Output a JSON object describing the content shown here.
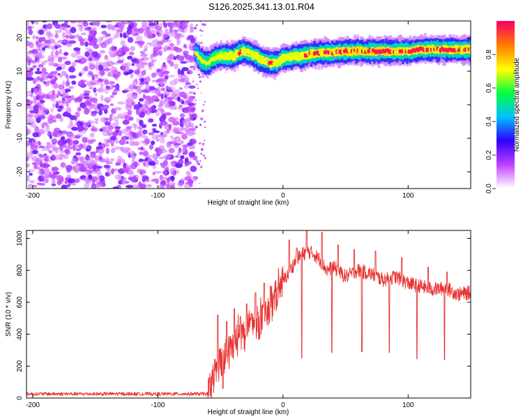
{
  "title": "S126.2025.341.13.01.R04",
  "chart_data": [
    {
      "type": "heatmap",
      "title": "S126.2025.341.13.01.R04",
      "xlabel": "Height of straight line (km)",
      "ylabel": "Frequency (Hz)",
      "xlim": [
        -205,
        150
      ],
      "ylim": [
        -25,
        25
      ],
      "xticks": [
        -200,
        -100,
        0,
        100
      ],
      "yticks": [
        -20,
        -10,
        0,
        10,
        20
      ],
      "colorbar": {
        "label": "Normalized spectral amplitude",
        "range": [
          0,
          1
        ],
        "ticks": [
          0.0,
          0.2,
          0.4,
          0.6,
          0.8
        ],
        "colors": [
          "#ffffff",
          "#c040ff",
          "#3000ff",
          "#00c0ff",
          "#00ff40",
          "#ffff00",
          "#ff8000",
          "#ff0060"
        ]
      },
      "noise_region": {
        "x": [
          -205,
          -70
        ],
        "level": 0.2
      },
      "signal_track": {
        "x": [
          -70,
          -65,
          -60,
          -55,
          -50,
          -45,
          -40,
          -35,
          -30,
          -25,
          -20,
          -15,
          -10,
          -5,
          0,
          5,
          10,
          15,
          20,
          30,
          40,
          50,
          60,
          70,
          80,
          90,
          100,
          110,
          120,
          130,
          140,
          150
        ],
        "freq": [
          15.5,
          13.0,
          12.5,
          14.0,
          14.5,
          14.5,
          14.5,
          15.5,
          16.0,
          15.0,
          14.0,
          13.0,
          12.5,
          12.5,
          14.0,
          14.0,
          14.5,
          14.5,
          15.0,
          15.5,
          15.5,
          16.0,
          16.0,
          16.0,
          16.0,
          16.0,
          16.0,
          16.5,
          16.5,
          16.5,
          16.5,
          16.5
        ],
        "amplitude": [
          0.4,
          0.5,
          0.5,
          0.6,
          0.65,
          0.75,
          0.8,
          0.85,
          0.8,
          0.75,
          0.8,
          0.8,
          0.85,
          0.8,
          0.75,
          0.75,
          0.8,
          0.8,
          0.85,
          0.9,
          0.9,
          0.95,
          0.95,
          0.95,
          0.95,
          0.95,
          0.9,
          0.9,
          0.9,
          0.9,
          0.9,
          0.9
        ]
      }
    },
    {
      "type": "line",
      "xlabel": "Height of straight line (km)",
      "ylabel": "SNR (10 * v/v)",
      "xlim": [
        -205,
        150
      ],
      "ylim": [
        0,
        1050
      ],
      "xticks": [
        -200,
        -100,
        0,
        100
      ],
      "yticks": [
        0,
        200,
        400,
        600,
        800,
        1000
      ],
      "color": "#e83030",
      "envelope": {
        "x": [
          -205,
          -60,
          -55,
          -50,
          -45,
          -40,
          -35,
          -30,
          -25,
          -20,
          -15,
          -10,
          -5,
          0,
          5,
          10,
          15,
          20,
          25,
          30,
          35,
          40,
          50,
          60,
          70,
          80,
          90,
          100,
          110,
          120,
          130,
          140,
          150
        ],
        "y": [
          25,
          25,
          150,
          230,
          270,
          320,
          380,
          400,
          450,
          470,
          500,
          550,
          650,
          730,
          790,
          860,
          900,
          920,
          900,
          860,
          800,
          820,
          760,
          800,
          780,
          740,
          760,
          720,
          700,
          680,
          690,
          650,
          660
        ]
      },
      "spikes": [
        {
          "x": -52,
          "y": 520
        },
        {
          "x": -45,
          "y": 480
        },
        {
          "x": -39,
          "y": 560
        },
        {
          "x": -34,
          "y": 510
        },
        {
          "x": -29,
          "y": 590
        },
        {
          "x": -22,
          "y": 660
        },
        {
          "x": -15,
          "y": 720
        },
        {
          "x": -10,
          "y": 700
        },
        {
          "x": 5,
          "y": 990
        },
        {
          "x": 11,
          "y": 940
        },
        {
          "x": 19,
          "y": 1060
        },
        {
          "x": 31,
          "y": 1040
        },
        {
          "x": 44,
          "y": 960
        },
        {
          "x": 57,
          "y": 930
        },
        {
          "x": 74,
          "y": 920
        },
        {
          "x": 95,
          "y": 880
        },
        {
          "x": 116,
          "y": 820
        },
        {
          "x": 131,
          "y": 790
        }
      ],
      "dips": [
        {
          "x": 15,
          "y": 250
        },
        {
          "x": 39,
          "y": 285
        },
        {
          "x": 63,
          "y": 290
        },
        {
          "x": 85,
          "y": 285
        },
        {
          "x": 107,
          "y": 245
        },
        {
          "x": 129,
          "y": 240
        },
        {
          "x": -58,
          "y": 10
        },
        {
          "x": -48,
          "y": 60
        }
      ]
    }
  ]
}
